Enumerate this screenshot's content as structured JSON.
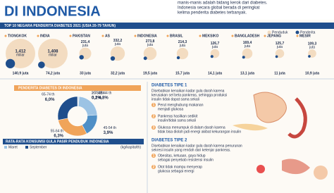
{
  "header": {
    "title": "DI INDONESIA",
    "intro": [
      "manis-manis adalah bidang kerok dari diabetes.",
      "Indonesia secara global berada di peringkat",
      "kelima penderita diabetes terbanyak."
    ]
  },
  "top10": {
    "title": "TOP 10 NEGARA PENDERITA DIABETES 2021 (USIA 20-79 TAHUN)",
    "legend": [
      "Penduduk",
      "Penderita"
    ],
    "countries": [
      {
        "name": "TIONGKOK",
        "pop": {
          "value": 1412,
          "label": "1,412"
        },
        "pop_unit": "miliar",
        "patients": {
          "value": 140.9,
          "label": "140,9 juta"
        }
      },
      {
        "name": "INDIA",
        "pop": {
          "value": 1408,
          "label": "1,408"
        },
        "pop_unit": "miliar",
        "patients": {
          "value": 74.2,
          "label": "74,2 juta"
        }
      },
      {
        "name": "PAKISTAN",
        "pop": {
          "value": 231.4,
          "label": "231,4"
        },
        "pop_unit": "juta",
        "patients": {
          "value": 33,
          "label": "33 juta"
        }
      },
      {
        "name": "AS",
        "pop": {
          "value": 332.2,
          "label": "332,2"
        },
        "pop_unit": "juta",
        "patients": {
          "value": 32.2,
          "label": "32,2 juta"
        }
      },
      {
        "name": "INDONESIA",
        "pop": {
          "value": 273.8,
          "label": "273,8"
        },
        "pop_unit": "juta",
        "patients": {
          "value": 19.5,
          "label": "19,5 juta"
        }
      },
      {
        "name": "BRASIL",
        "pop": {
          "value": 214.3,
          "label": "214,3"
        },
        "pop_unit": "juta",
        "patients": {
          "value": 15.7,
          "label": "15,7 juta"
        }
      },
      {
        "name": "MEKSIKO",
        "pop": {
          "value": 126.7,
          "label": "126,7"
        },
        "pop_unit": "juta",
        "patients": {
          "value": 14.1,
          "label": "14,1 juta"
        }
      },
      {
        "name": "BANGLADESH",
        "pop": {
          "value": 169.4,
          "label": "169,4"
        },
        "pop_unit": "juta",
        "patients": {
          "value": 13.1,
          "label": "13,1 juta"
        }
      },
      {
        "name": "JEPANG",
        "pop": {
          "value": 125.7,
          "label": "125,7"
        },
        "pop_unit": "juta",
        "patients": {
          "value": 11,
          "label": "11 juta"
        }
      },
      {
        "name": "MESIR",
        "pop": {
          "value": 109.3,
          "label": "109,3"
        },
        "pop_unit": "juta",
        "patients": {
          "value": 10.9,
          "label": "10,9 juta"
        }
      }
    ]
  },
  "age": {
    "title": "PENDERITA DIABETES DI INDONESIA",
    "groups": [
      {
        "label": "> 75 th",
        "value": 0.1,
        "value_label": "0,1%",
        "color": "#f3d9b8"
      },
      {
        "label": "20-34 th",
        "value": 0.2,
        "value_label": "0,2%",
        "color": "#c9ddef"
      },
      {
        "label": "35-44 th",
        "value": 4.8,
        "value_label": "4,8%",
        "color": "#9cc3e4"
      },
      {
        "label": "45-54 th",
        "value": 3.9,
        "value_label": "3,9%",
        "color": "#4f8fc6"
      },
      {
        "label": "55-64 th",
        "value": 6.3,
        "value_label": "6,3%",
        "color": "#f0a45a"
      },
      {
        "label": "65-74 th",
        "value": 6.0,
        "value_label": "6,0%",
        "color": "#1f4e8c"
      }
    ]
  },
  "sugar": {
    "title": "RATA-RATA KONSUMSI GULA PASIR PENDUDUK INDONESIA",
    "legend": [
      "Maret",
      "September"
    ],
    "unit": "(kg/kapita/th)"
  },
  "type1": {
    "title": "DIABETES TIPE 1",
    "desc": [
      "Disebabkan kenaikan kadar gula darah karena",
      "kerusakan sel beta pankreas, sehingga produksi",
      "insulin tidak dapat sama sekali"
    ],
    "steps": [
      {
        "num": "1",
        "lines": [
          "Perut menghubung makanan",
          "menjadi glukosa"
        ]
      },
      {
        "num": "2",
        "lines": [
          "Pankreas hasilkan sedikit",
          "insulin/tidak sama sekali"
        ]
      },
      {
        "num": "3",
        "lines": [
          "Glukosa menumpuk di dalam darah karena",
          "tidak bisa diolah jadi energi akibat kekurangan insulin"
        ]
      }
    ]
  },
  "type2": {
    "title": "DIABETES TIPE 2",
    "desc": [
      "Disebabkan kenaikan kadar gula darah karena penurunan",
      "sekresi insulin yang rendah dari kelenjar pankreas."
    ],
    "steps": [
      {
        "num": "1",
        "lines": [
          "Obesitas, ketuaan, gaya hidup",
          "sebagai penyebab resistensi insulin"
        ]
      },
      {
        "num": "2",
        "lines": [
          "Otot tidak mampu menyerap",
          "glukosa sebagai energi"
        ]
      }
    ]
  }
}
